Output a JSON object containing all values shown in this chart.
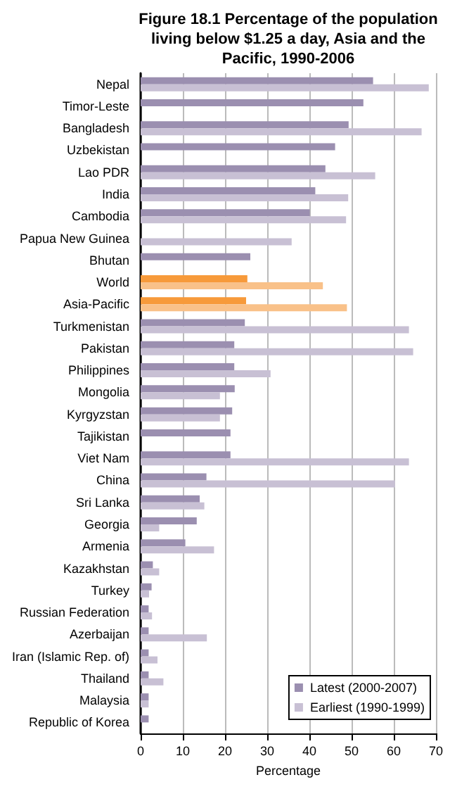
{
  "chart_data": {
    "type": "bar",
    "orientation": "horizontal",
    "title": "Figure 18.1 Percentage of the population living below $1.25 a day, Asia and the Pacific, 1990-2006",
    "xlabel": "Percentage",
    "categories": [
      "Nepal",
      "Timor-Leste",
      "Bangladesh",
      "Uzbekistan",
      "Lao PDR",
      "India",
      "Cambodia",
      "Papua New Guinea",
      "Bhutan",
      "World",
      "Asia-Pacific",
      "Turkmenistan",
      "Pakistan",
      "Philippines",
      "Mongolia",
      "Kyrgyzstan",
      "Tajikistan",
      "Viet Nam",
      "China",
      "Sri Lanka",
      "Georgia",
      "Armenia",
      "Kazakhstan",
      "Turkey",
      "Russian Federation",
      "Azerbaijan",
      "Iran (Islamic Rep. of)",
      "Thailand",
      "Malaysia",
      "Republic of Korea"
    ],
    "series": [
      {
        "name": "Latest (2000-2007)",
        "color": "#9b8fb0",
        "colors": [
          "#9b8fb0",
          "#9b8fb0",
          "#9b8fb0",
          "#9b8fb0",
          "#9b8fb0",
          "#9b8fb0",
          "#9b8fb0",
          "#9b8fb0",
          "#9b8fb0",
          "#f79a3a",
          "#f79a3a",
          "#9b8fb0",
          "#9b8fb0",
          "#9b8fb0",
          "#9b8fb0",
          "#9b8fb0",
          "#9b8fb0",
          "#9b8fb0",
          "#9b8fb0",
          "#9b8fb0",
          "#9b8fb0",
          "#9b8fb0",
          "#9b8fb0",
          "#9b8fb0",
          "#9b8fb0",
          "#9b8fb0",
          "#9b8fb0",
          "#9b8fb0",
          "#9b8fb0",
          "#9b8fb0"
        ],
        "values": [
          55.1,
          52.8,
          49.3,
          46.1,
          43.8,
          41.4,
          40.1,
          null,
          26.0,
          25.3,
          25.0,
          24.7,
          22.2,
          22.2,
          22.3,
          21.7,
          21.3,
          21.3,
          15.6,
          14.0,
          13.3,
          10.6,
          2.9,
          2.6,
          1.9,
          1.9,
          1.9,
          1.9,
          1.9,
          1.9
        ]
      },
      {
        "name": "Earliest (1990-1999)",
        "color": "#c8c0d4",
        "colors": [
          "#c8c0d4",
          "#c8c0d4",
          "#c8c0d4",
          "#c8c0d4",
          "#c8c0d4",
          "#c8c0d4",
          "#c8c0d4",
          "#c8c0d4",
          "#c8c0d4",
          "#f9c189",
          "#f9c189",
          "#c8c0d4",
          "#c8c0d4",
          "#c8c0d4",
          "#c8c0d4",
          "#c8c0d4",
          "#c8c0d4",
          "#c8c0d4",
          "#c8c0d4",
          "#c8c0d4",
          "#c8c0d4",
          "#c8c0d4",
          "#c8c0d4",
          "#c8c0d4",
          "#c8c0d4",
          "#c8c0d4",
          "#c8c0d4",
          "#c8c0d4",
          "#c8c0d4",
          "#c8c0d4"
        ],
        "values": [
          68.3,
          null,
          66.6,
          null,
          55.6,
          49.2,
          48.7,
          35.8,
          null,
          43.2,
          48.9,
          63.6,
          64.6,
          30.8,
          18.8,
          18.8,
          null,
          63.6,
          60.3,
          15.1,
          4.4,
          17.4,
          4.4,
          2.0,
          2.7,
          15.7,
          4.0,
          5.4,
          1.9,
          null
        ]
      }
    ],
    "xlim": [
      0,
      70
    ],
    "xticks": [
      0,
      10,
      20,
      30,
      40,
      50,
      60,
      70
    ],
    "grid": "x",
    "legend": "bottom right"
  }
}
